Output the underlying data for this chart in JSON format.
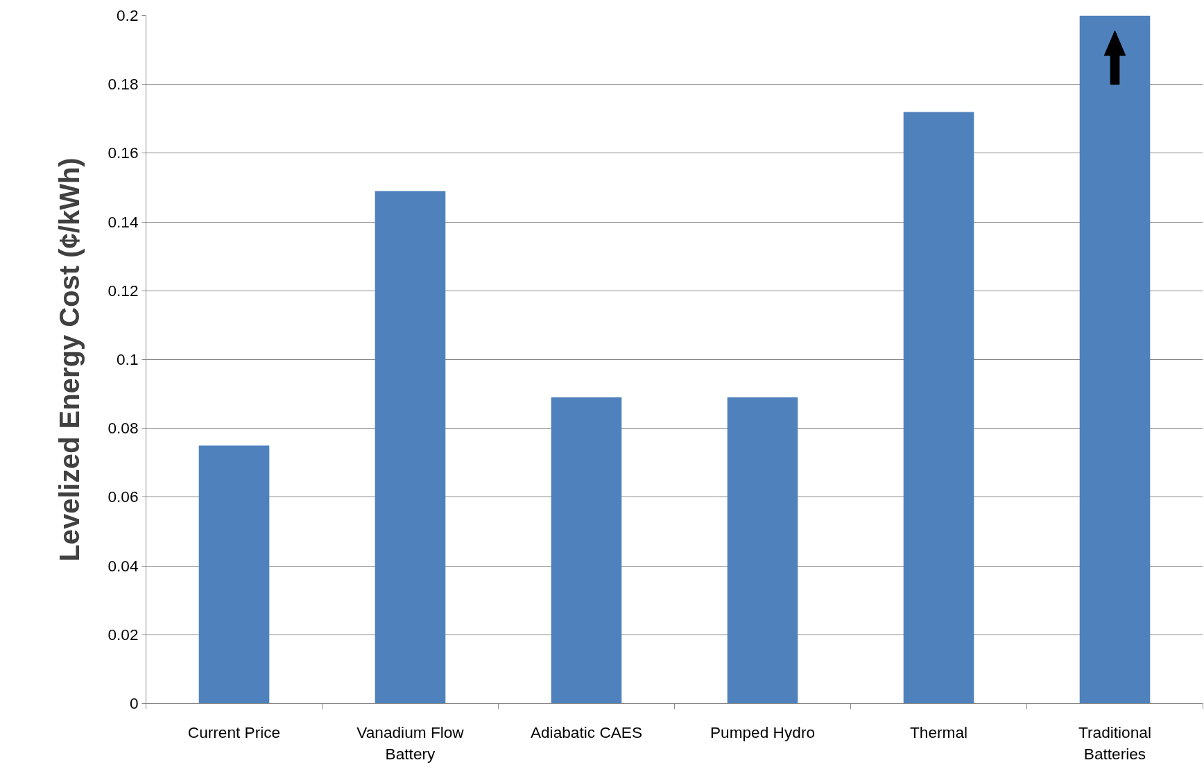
{
  "chart_data": {
    "type": "bar",
    "ylabel": "Levelized Energy Cost (¢/kWh)",
    "categories": [
      "Current Price",
      "Vanadium Flow Battery",
      "Adiabatic CAES",
      "Pumped Hydro",
      "Thermal",
      "Traditional Batteries"
    ],
    "values": [
      0.075,
      0.149,
      0.089,
      0.089,
      0.172,
      0.2
    ],
    "color": "#4f81bd",
    "ylim": [
      0,
      0.2
    ],
    "yticks": [
      0,
      0.02,
      0.04,
      0.06,
      0.08,
      0.1,
      0.12,
      0.14,
      0.16,
      0.18,
      0.2
    ],
    "grid": "y"
  }
}
